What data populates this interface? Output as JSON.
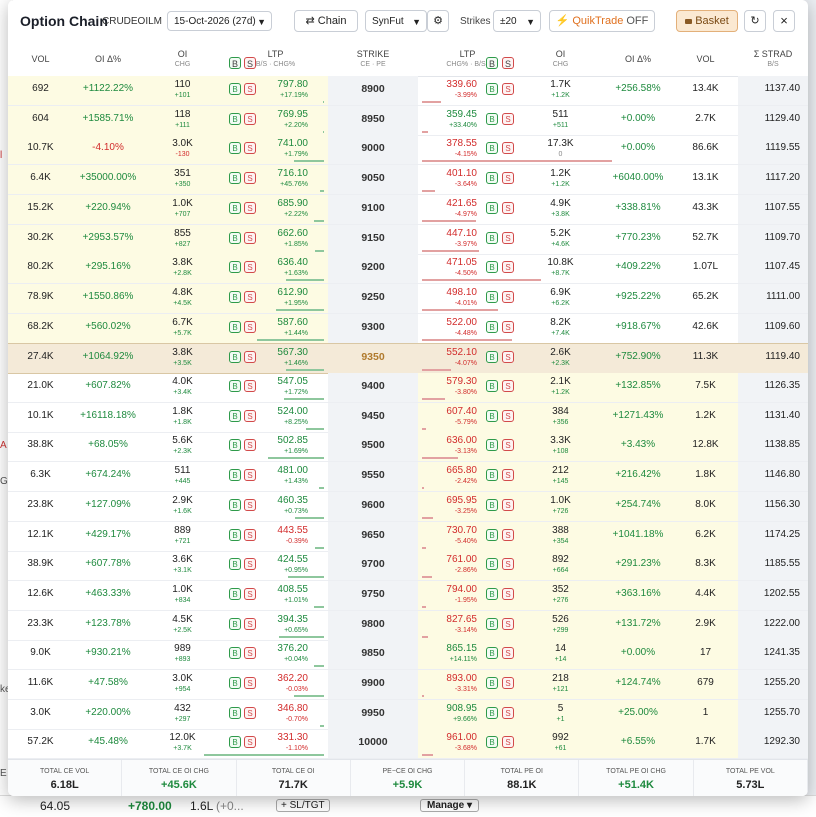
{
  "header": {
    "title": "Option Chain",
    "symbol": "CRUDEOILM",
    "expiry": "15-Oct-2026 (27d)",
    "chain_btn": "⇄ Chain",
    "synfut": "SynFut",
    "strikes_label": "Strikes",
    "strikes_value": "±20",
    "quiktrade": "⚡ QuikTrade",
    "quiktrade_state": "OFF",
    "basket": "Basket",
    "refresh": "↻",
    "close": "×",
    "gear": "⚙"
  },
  "columns": {
    "vol": "VOL",
    "oi_pct": "OI Δ%",
    "oi": "OI",
    "oi_sub": "CHG",
    "ltp": "LTP",
    "ltp_sub_ce": "B/S · CHG%",
    "strike": "STRIKE",
    "strike_sub": "CE · PE",
    "ltp_sub_pe": "CHG% · B/S",
    "strad": "Σ STRAD",
    "strad_sub": "B/S",
    "b": "B",
    "s": "S"
  },
  "rows": [
    {
      "strike": "8900",
      "ce_vol": "692",
      "ce_oipct": "+1122.22%",
      "ce_oi": "110",
      "ce_oichg": "+101",
      "ce_ltp": "797.80",
      "ce_chg": "+17.19%",
      "pe_ltp": "339.60",
      "pe_chg": "-3.99%",
      "pe_oi": "1.7K",
      "pe_oichg": "+1.2K",
      "pe_oipct": "+256.58%",
      "pe_vol": "13.4K",
      "strad": "1137.40"
    },
    {
      "strike": "8950",
      "ce_vol": "604",
      "ce_oipct": "+1585.71%",
      "ce_oi": "118",
      "ce_oichg": "+111",
      "ce_ltp": "769.95",
      "ce_chg": "+2.20%",
      "pe_ltp": "359.45",
      "pe_chg": "+33.40%",
      "pe_oi": "511",
      "pe_oichg": "+511",
      "pe_oipct": "+0.00%",
      "pe_vol": "2.7K",
      "strad": "1129.40"
    },
    {
      "strike": "9000",
      "ce_vol": "10.7K",
      "ce_oipct": "-4.10%",
      "ce_oi": "3.0K",
      "ce_oichg": "-130",
      "ce_ltp": "741.00",
      "ce_chg": "+1.79%",
      "pe_ltp": "378.55",
      "pe_chg": "-4.15%",
      "pe_oi": "17.3K",
      "pe_oichg": "0",
      "pe_oipct": "+0.00%",
      "pe_vol": "86.6K",
      "strad": "1119.55"
    },
    {
      "strike": "9050",
      "ce_vol": "6.4K",
      "ce_oipct": "+35000.00%",
      "ce_oi": "351",
      "ce_oichg": "+350",
      "ce_ltp": "716.10",
      "ce_chg": "+45.76%",
      "pe_ltp": "401.10",
      "pe_chg": "-3.64%",
      "pe_oi": "1.2K",
      "pe_oichg": "+1.2K",
      "pe_oipct": "+6040.00%",
      "pe_vol": "13.1K",
      "strad": "1117.20"
    },
    {
      "strike": "9100",
      "ce_vol": "15.2K",
      "ce_oipct": "+220.94%",
      "ce_oi": "1.0K",
      "ce_oichg": "+707",
      "ce_ltp": "685.90",
      "ce_chg": "+2.22%",
      "pe_ltp": "421.65",
      "pe_chg": "-4.97%",
      "pe_oi": "4.9K",
      "pe_oichg": "+3.8K",
      "pe_oipct": "+338.81%",
      "pe_vol": "43.3K",
      "strad": "1107.55"
    },
    {
      "strike": "9150",
      "ce_vol": "30.2K",
      "ce_oipct": "+2953.57%",
      "ce_oi": "855",
      "ce_oichg": "+827",
      "ce_ltp": "662.60",
      "ce_chg": "+1.85%",
      "pe_ltp": "447.10",
      "pe_chg": "-3.97%",
      "pe_oi": "5.2K",
      "pe_oichg": "+4.6K",
      "pe_oipct": "+770.23%",
      "pe_vol": "52.7K",
      "strad": "1109.70"
    },
    {
      "strike": "9200",
      "ce_vol": "80.2K",
      "ce_oipct": "+295.16%",
      "ce_oi": "3.8K",
      "ce_oichg": "+2.8K",
      "ce_ltp": "636.40",
      "ce_chg": "+1.63%",
      "pe_ltp": "471.05",
      "pe_chg": "-4.50%",
      "pe_oi": "10.8K",
      "pe_oichg": "+8.7K",
      "pe_oipct": "+409.22%",
      "pe_vol": "1.07L",
      "strad": "1107.45"
    },
    {
      "strike": "9250",
      "ce_vol": "78.9K",
      "ce_oipct": "+1550.86%",
      "ce_oi": "4.8K",
      "ce_oichg": "+4.5K",
      "ce_ltp": "612.90",
      "ce_chg": "+1.95%",
      "pe_ltp": "498.10",
      "pe_chg": "-4.01%",
      "pe_oi": "6.9K",
      "pe_oichg": "+6.2K",
      "pe_oipct": "+925.22%",
      "pe_vol": "65.2K",
      "strad": "1111.00"
    },
    {
      "strike": "9300",
      "ce_vol": "68.2K",
      "ce_oipct": "+560.02%",
      "ce_oi": "6.7K",
      "ce_oichg": "+5.7K",
      "ce_ltp": "587.60",
      "ce_chg": "+1.44%",
      "pe_ltp": "522.00",
      "pe_chg": "-4.48%",
      "pe_oi": "8.2K",
      "pe_oichg": "+7.4K",
      "pe_oipct": "+918.67%",
      "pe_vol": "42.6K",
      "strad": "1109.60"
    },
    {
      "strike": "9350",
      "ce_vol": "27.4K",
      "ce_oipct": "+1064.92%",
      "ce_oi": "3.8K",
      "ce_oichg": "+3.5K",
      "ce_ltp": "567.30",
      "ce_chg": "+1.46%",
      "pe_ltp": "552.10",
      "pe_chg": "-4.07%",
      "pe_oi": "2.6K",
      "pe_oichg": "+2.3K",
      "pe_oipct": "+752.90%",
      "pe_vol": "11.3K",
      "strad": "1119.40"
    },
    {
      "strike": "9400",
      "ce_vol": "21.0K",
      "ce_oipct": "+607.82%",
      "ce_oi": "4.0K",
      "ce_oichg": "+3.4K",
      "ce_ltp": "547.05",
      "ce_chg": "+1.72%",
      "pe_ltp": "579.30",
      "pe_chg": "-3.80%",
      "pe_oi": "2.1K",
      "pe_oichg": "+1.2K",
      "pe_oipct": "+132.85%",
      "pe_vol": "7.5K",
      "strad": "1126.35"
    },
    {
      "strike": "9450",
      "ce_vol": "10.1K",
      "ce_oipct": "+16118.18%",
      "ce_oi": "1.8K",
      "ce_oichg": "+1.8K",
      "ce_ltp": "524.00",
      "ce_chg": "+8.25%",
      "pe_ltp": "607.40",
      "pe_chg": "-5.79%",
      "pe_oi": "384",
      "pe_oichg": "+356",
      "pe_oipct": "+1271.43%",
      "pe_vol": "1.2K",
      "strad": "1131.40"
    },
    {
      "strike": "9500",
      "ce_vol": "38.8K",
      "ce_oipct": "+68.05%",
      "ce_oi": "5.6K",
      "ce_oichg": "+2.3K",
      "ce_ltp": "502.85",
      "ce_chg": "+1.69%",
      "pe_ltp": "636.00",
      "pe_chg": "-3.13%",
      "pe_oi": "3.3K",
      "pe_oichg": "+108",
      "pe_oipct": "+3.43%",
      "pe_vol": "12.8K",
      "strad": "1138.85"
    },
    {
      "strike": "9550",
      "ce_vol": "6.3K",
      "ce_oipct": "+674.24%",
      "ce_oi": "511",
      "ce_oichg": "+445",
      "ce_ltp": "481.00",
      "ce_chg": "+1.43%",
      "pe_ltp": "665.80",
      "pe_chg": "-2.42%",
      "pe_oi": "212",
      "pe_oichg": "+145",
      "pe_oipct": "+216.42%",
      "pe_vol": "1.8K",
      "strad": "1146.80"
    },
    {
      "strike": "9600",
      "ce_vol": "23.8K",
      "ce_oipct": "+127.09%",
      "ce_oi": "2.9K",
      "ce_oichg": "+1.6K",
      "ce_ltp": "460.35",
      "ce_chg": "+0.73%",
      "pe_ltp": "695.95",
      "pe_chg": "-3.25%",
      "pe_oi": "1.0K",
      "pe_oichg": "+726",
      "pe_oipct": "+254.74%",
      "pe_vol": "8.0K",
      "strad": "1156.30"
    },
    {
      "strike": "9650",
      "ce_vol": "12.1K",
      "ce_oipct": "+429.17%",
      "ce_oi": "889",
      "ce_oichg": "+721",
      "ce_ltp": "443.55",
      "ce_chg": "-0.39%",
      "pe_ltp": "730.70",
      "pe_chg": "-5.40%",
      "pe_oi": "388",
      "pe_oichg": "+354",
      "pe_oipct": "+1041.18%",
      "pe_vol": "6.2K",
      "strad": "1174.25"
    },
    {
      "strike": "9700",
      "ce_vol": "38.9K",
      "ce_oipct": "+607.78%",
      "ce_oi": "3.6K",
      "ce_oichg": "+3.1K",
      "ce_ltp": "424.55",
      "ce_chg": "+0.95%",
      "pe_ltp": "761.00",
      "pe_chg": "-2.86%",
      "pe_oi": "892",
      "pe_oichg": "+664",
      "pe_oipct": "+291.23%",
      "pe_vol": "8.3K",
      "strad": "1185.55"
    },
    {
      "strike": "9750",
      "ce_vol": "12.6K",
      "ce_oipct": "+463.33%",
      "ce_oi": "1.0K",
      "ce_oichg": "+834",
      "ce_ltp": "408.55",
      "ce_chg": "+1.01%",
      "pe_ltp": "794.00",
      "pe_chg": "-1.95%",
      "pe_oi": "352",
      "pe_oichg": "+276",
      "pe_oipct": "+363.16%",
      "pe_vol": "4.4K",
      "strad": "1202.55"
    },
    {
      "strike": "9800",
      "ce_vol": "23.3K",
      "ce_oipct": "+123.78%",
      "ce_oi": "4.5K",
      "ce_oichg": "+2.5K",
      "ce_ltp": "394.35",
      "ce_chg": "+0.65%",
      "pe_ltp": "827.65",
      "pe_chg": "-3.14%",
      "pe_oi": "526",
      "pe_oichg": "+299",
      "pe_oipct": "+131.72%",
      "pe_vol": "2.9K",
      "strad": "1222.00"
    },
    {
      "strike": "9850",
      "ce_vol": "9.0K",
      "ce_oipct": "+930.21%",
      "ce_oi": "989",
      "ce_oichg": "+893",
      "ce_ltp": "376.20",
      "ce_chg": "+0.04%",
      "pe_ltp": "865.15",
      "pe_chg": "+14.11%",
      "pe_oi": "14",
      "pe_oichg": "+14",
      "pe_oipct": "+0.00%",
      "pe_vol": "17",
      "strad": "1241.35"
    },
    {
      "strike": "9900",
      "ce_vol": "11.6K",
      "ce_oipct": "+47.58%",
      "ce_oi": "3.0K",
      "ce_oichg": "+954",
      "ce_ltp": "362.20",
      "ce_chg": "-0.03%",
      "pe_ltp": "893.00",
      "pe_chg": "-3.31%",
      "pe_oi": "218",
      "pe_oichg": "+121",
      "pe_oipct": "+124.74%",
      "pe_vol": "679",
      "strad": "1255.20"
    },
    {
      "strike": "9950",
      "ce_vol": "3.0K",
      "ce_oipct": "+220.00%",
      "ce_oi": "432",
      "ce_oichg": "+297",
      "ce_ltp": "346.80",
      "ce_chg": "-0.70%",
      "pe_ltp": "908.95",
      "pe_chg": "+9.66%",
      "pe_oi": "5",
      "pe_oichg": "+1",
      "pe_oipct": "+25.00%",
      "pe_vol": "1",
      "strad": "1255.70"
    },
    {
      "strike": "10000",
      "ce_vol": "57.2K",
      "ce_oipct": "+45.48%",
      "ce_oi": "12.0K",
      "ce_oichg": "+3.7K",
      "ce_ltp": "331.30",
      "ce_chg": "-1.10%",
      "pe_ltp": "961.00",
      "pe_chg": "-3.68%",
      "pe_oi": "992",
      "pe_oichg": "+61",
      "pe_oipct": "+6.55%",
      "pe_vol": "1.7K",
      "strad": "1292.30"
    }
  ],
  "totals": [
    {
      "label": "TOTAL CE VOL",
      "value": "6.18L",
      "color": "#222222"
    },
    {
      "label": "TOTAL CE OI CHG",
      "value": "+45.6K",
      "color": "#1e8a3e"
    },
    {
      "label": "TOTAL CE OI",
      "value": "71.7K",
      "color": "#222222"
    },
    {
      "label": "PE−CE OI CHG",
      "value": "+5.9K",
      "color": "#1e8a3e"
    },
    {
      "label": "TOTAL PE OI",
      "value": "88.1K",
      "color": "#222222"
    },
    {
      "label": "TOTAL PE OI CHG",
      "value": "+51.4K",
      "color": "#1e8a3e"
    },
    {
      "label": "TOTAL PE VOL",
      "value": "5.73L",
      "color": "#222222"
    }
  ],
  "background": {
    "left_glyphs": [
      "l",
      "A",
      "G",
      "ke",
      "E"
    ],
    "bottom": {
      "price": "64.05",
      "change": "+780.00",
      "qty": "1.6L",
      "qty_chg": "(+0...",
      "sl_tgt": "+ SL/TGT",
      "manage": "Manage ▾"
    }
  },
  "colors": {
    "green": "#1e8a3e",
    "red": "#d22c2c",
    "itm": "#fdfbe3",
    "atm": "#f4ead8",
    "strike_bg": "#f1f3f6"
  }
}
